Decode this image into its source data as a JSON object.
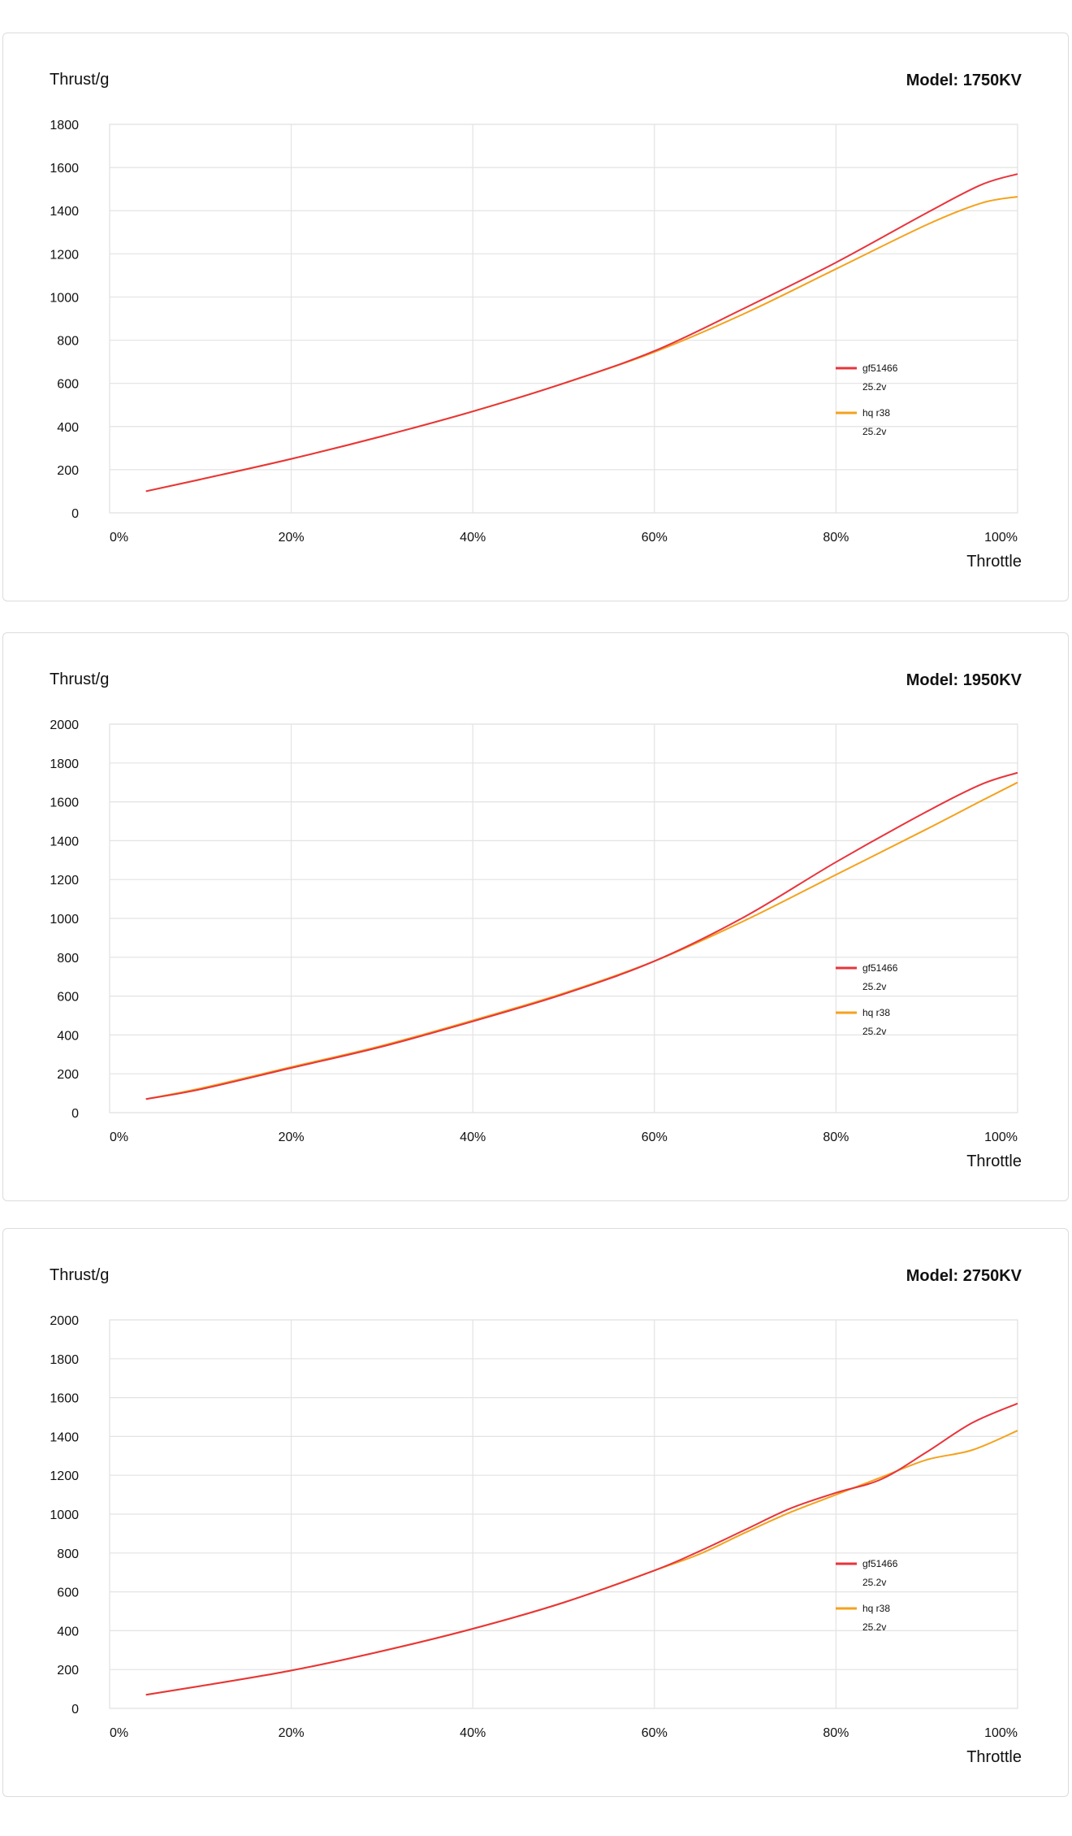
{
  "colors": {
    "series1": "#e8343b",
    "series2": "#f4a21d",
    "grid": "#e3e3e3"
  },
  "chart_data": [
    {
      "type": "line",
      "title": "Model: 1750KV",
      "ylabel": "Thrust/g",
      "xlabel": "Throttle",
      "ylim": [
        0,
        1800
      ],
      "yticks": [
        0,
        200,
        400,
        600,
        800,
        1000,
        1200,
        1400,
        1600,
        1800
      ],
      "xticks": [
        "0%",
        "20%",
        "40%",
        "60%",
        "80%",
        "100%"
      ],
      "x": [
        4,
        10,
        20,
        30,
        40,
        50,
        60,
        70,
        80,
        90,
        96,
        100
      ],
      "legend_position": "right",
      "series": [
        {
          "name": "gf51466",
          "sub": "25.2v",
          "values": [
            100,
            155,
            250,
            355,
            470,
            600,
            750,
            950,
            1160,
            1390,
            1520,
            1570
          ]
        },
        {
          "name": "hq r38",
          "sub": "25.2v",
          "values": [
            100,
            155,
            250,
            355,
            470,
            600,
            745,
            925,
            1130,
            1335,
            1435,
            1465
          ]
        }
      ]
    },
    {
      "type": "line",
      "title": "Model: 1950KV",
      "ylabel": "Thrust/g",
      "xlabel": "Throttle",
      "ylim": [
        0,
        2000
      ],
      "yticks": [
        0,
        200,
        400,
        600,
        800,
        1000,
        1200,
        1400,
        1600,
        1800,
        2000
      ],
      "xticks": [
        "0%",
        "20%",
        "40%",
        "60%",
        "80%",
        "100%"
      ],
      "x": [
        4,
        10,
        20,
        30,
        40,
        50,
        60,
        70,
        80,
        90,
        96,
        100
      ],
      "legend_position": "right",
      "series": [
        {
          "name": "gf51466",
          "sub": "25.2v",
          "values": [
            70,
            120,
            230,
            340,
            470,
            610,
            780,
            1010,
            1290,
            1550,
            1690,
            1750
          ]
        },
        {
          "name": "hq r38",
          "sub": "25.2v",
          "values": [
            70,
            125,
            235,
            345,
            475,
            615,
            780,
            990,
            1225,
            1460,
            1605,
            1700
          ]
        }
      ]
    },
    {
      "type": "line",
      "title": "Model: 2750KV",
      "ylabel": "Thrust/g",
      "xlabel": "Throttle",
      "ylim": [
        0,
        2000
      ],
      "yticks": [
        0,
        200,
        400,
        600,
        800,
        1000,
        1200,
        1400,
        1600,
        1800,
        2000
      ],
      "xticks": [
        "0%",
        "20%",
        "40%",
        "60%",
        "80%",
        "100%"
      ],
      "x": [
        4,
        10,
        20,
        30,
        40,
        50,
        60,
        65,
        70,
        75,
        80,
        85,
        90,
        95,
        100
      ],
      "legend_position": "right",
      "series": [
        {
          "name": "gf51466",
          "sub": "25.2v",
          "values": [
            70,
            115,
            195,
            295,
            410,
            545,
            710,
            810,
            920,
            1030,
            1110,
            1180,
            1320,
            1470,
            1570
          ]
        },
        {
          "name": "hq r38",
          "sub": "25.2v",
          "values": [
            70,
            115,
            195,
            295,
            410,
            545,
            710,
            795,
            905,
            1010,
            1100,
            1190,
            1280,
            1330,
            1430
          ]
        }
      ]
    }
  ]
}
